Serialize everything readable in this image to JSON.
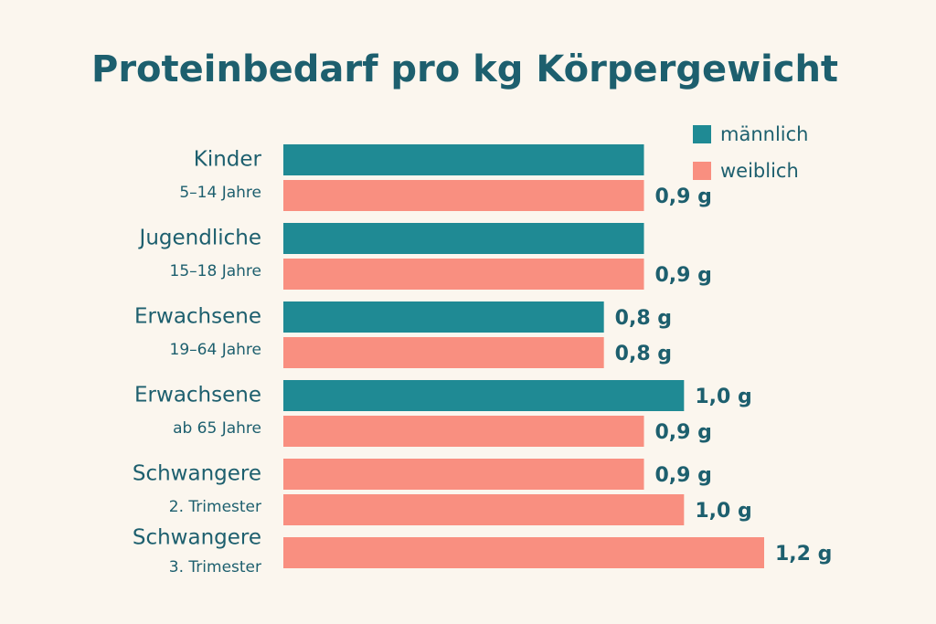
{
  "chart_data": {
    "type": "bar",
    "orientation": "horizontal",
    "title": "Proteinbedarf pro kg Körpergewicht",
    "categories": [
      "Kinder",
      "Jugendliche",
      "Erwachsene",
      "Erwachsene",
      "Schwangere",
      "Schwangere"
    ],
    "subcategories": [
      "5–14 Jahre",
      "15–18 Jahre",
      "19–64 Jahre",
      "ab 65 Jahre",
      "2. Trimester",
      "3. Trimester"
    ],
    "series": [
      {
        "name": "männlich",
        "color": "#1f8a94",
        "values": [
          0.9,
          0.9,
          0.8,
          1.0,
          null,
          null
        ],
        "value_labels": [
          null,
          null,
          "0,8 g",
          "1,0 g",
          null,
          null
        ]
      },
      {
        "name": "weiblich",
        "color": "#f98f80",
        "values": [
          0.9,
          0.9,
          0.8,
          0.9,
          0.9,
          1.2
        ],
        "value_labels": [
          "0,9 g",
          "0,9 g",
          "0,8 g",
          "0,9 g",
          "0,9 g",
          "1,2 g"
        ]
      },
      {
        "color": "#f98f80",
        "values": [
          null,
          null,
          null,
          null,
          1.0,
          null
        ],
        "value_labels": [
          null,
          null,
          null,
          null,
          "1,0 g",
          null
        ]
      }
    ],
    "xlim": [
      0,
      1.2
    ],
    "legend": "top-right"
  }
}
